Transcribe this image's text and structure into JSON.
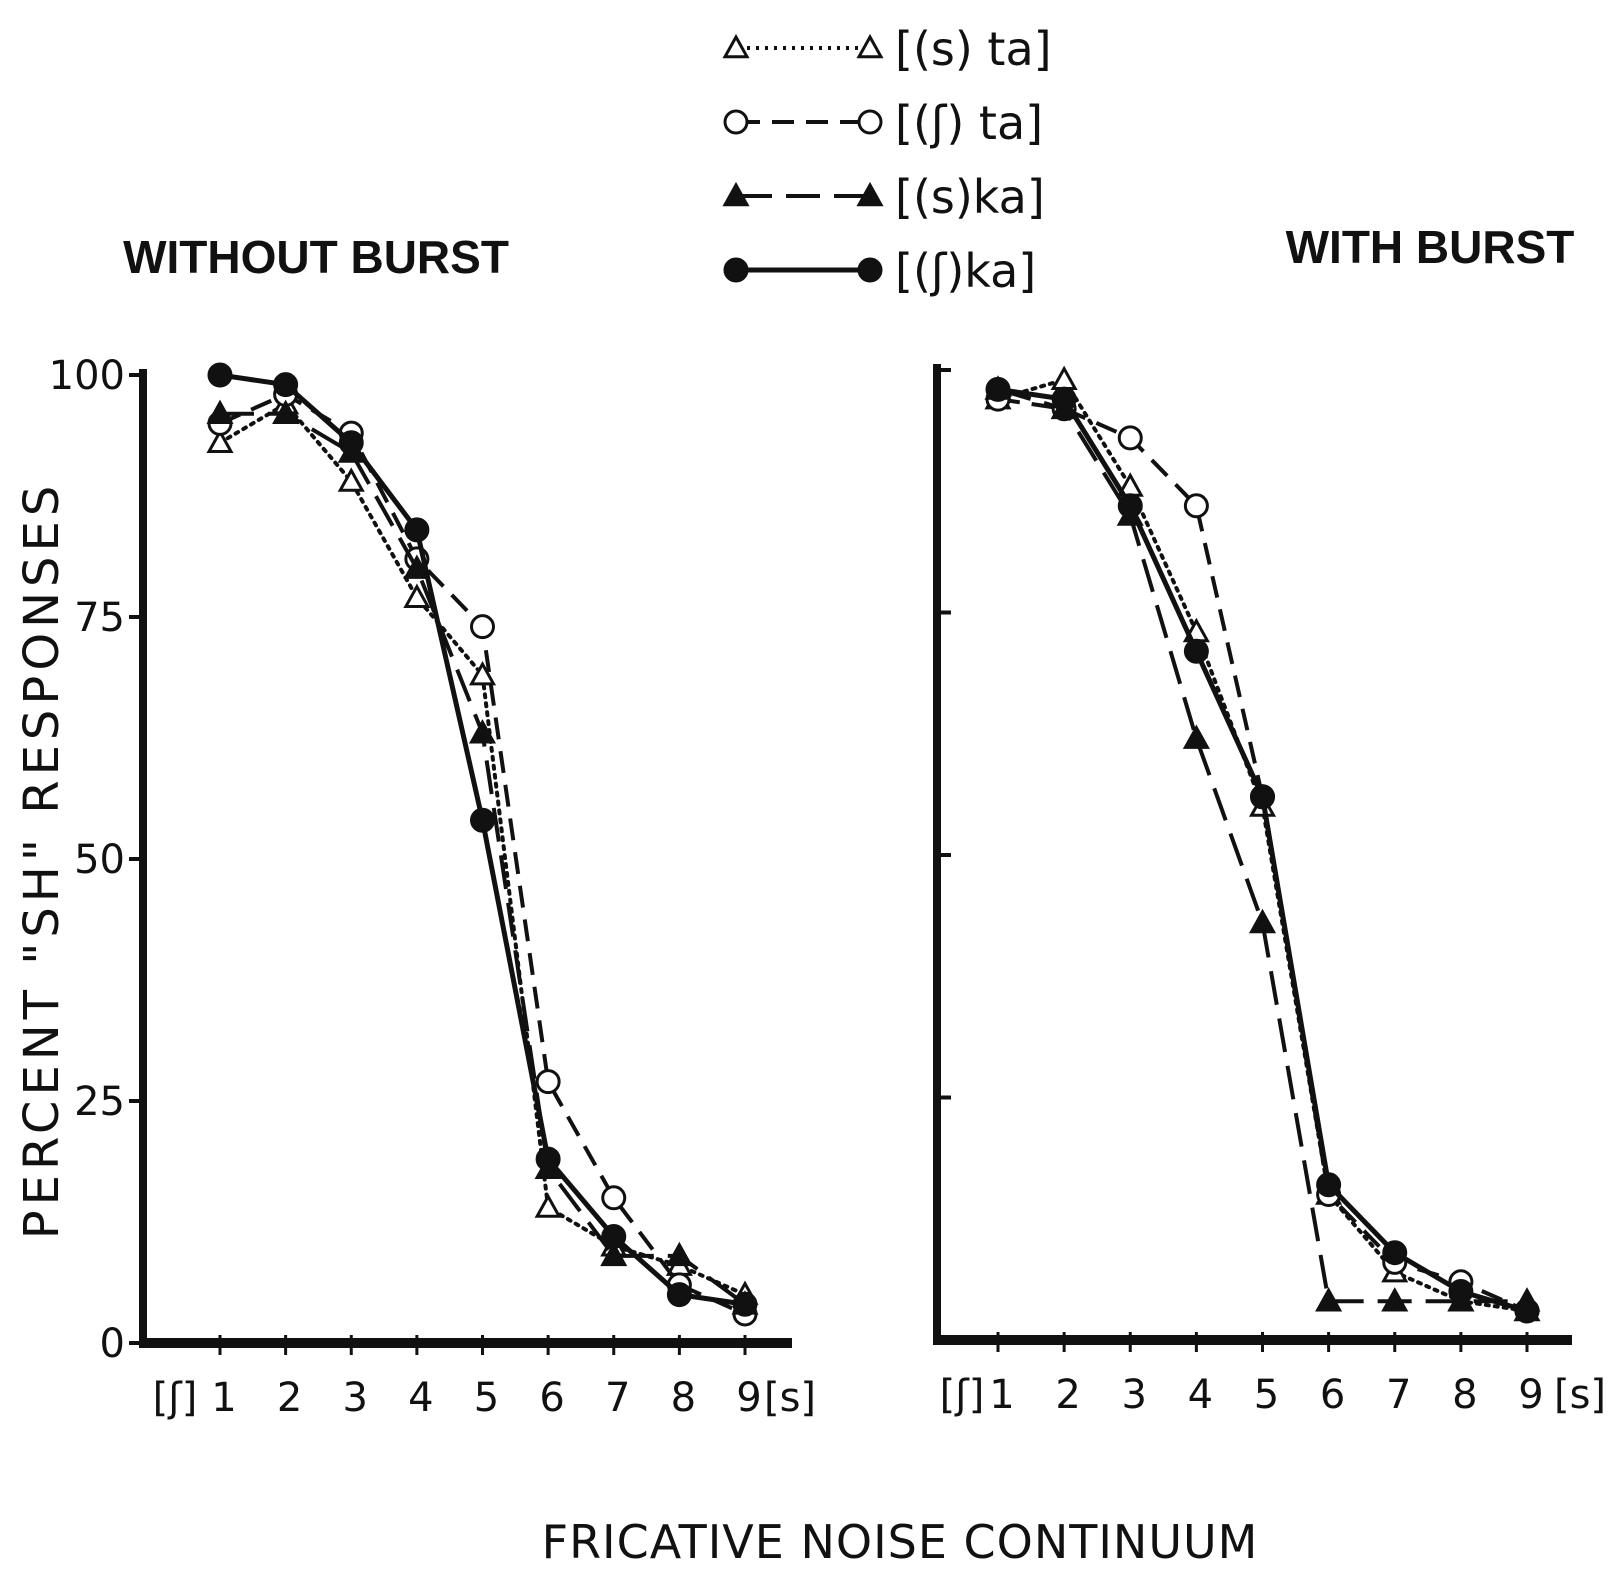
{
  "chart_data": {
    "type": "line",
    "ylabel": "PERCENT \"SH\" RESPONSES",
    "xlabel": "FRICATIVE NOISE CONTINUUM",
    "x_end_labels": [
      "[ʃ]",
      "[s]"
    ],
    "x": [
      1,
      2,
      3,
      4,
      5,
      6,
      7,
      8,
      9
    ],
    "xlim": [
      1,
      9
    ],
    "ylim": [
      0,
      100
    ],
    "yticks": [
      0,
      25,
      50,
      75,
      100
    ],
    "legend": [
      {
        "label": "[(s) ta]",
        "marker": "open-triangle",
        "line": "dotted"
      },
      {
        "label": "[(ʃ) ta]",
        "marker": "open-circle",
        "line": "dashed"
      },
      {
        "label": "[(s)ka]",
        "marker": "filled-triangle",
        "line": "long-dash"
      },
      {
        "label": "[(ʃ)ka]",
        "marker": "filled-circle",
        "line": "solid"
      }
    ],
    "panels": [
      {
        "title": "WITHOUT BURST",
        "show_ytick_labels": true,
        "series": [
          {
            "values": [
              93,
              97,
              89,
              77,
              69,
              14,
              10,
              8,
              5
            ]
          },
          {
            "values": [
              95,
              98,
              94,
              81,
              74,
              27,
              15,
              6,
              3
            ]
          },
          {
            "values": [
              96,
              96,
              92,
              80,
              63,
              18,
              9,
              9,
              4
            ]
          },
          {
            "values": [
              100,
              99,
              93,
              84,
              54,
              19,
              11,
              5,
              4
            ]
          }
        ]
      },
      {
        "title": "WITH BURST",
        "show_ytick_labels": false,
        "series": [
          {
            "values": [
              97,
              99,
              88,
              73,
              55,
              15,
              7,
              4,
              3
            ]
          },
          {
            "values": [
              97,
              96,
              93,
              86,
              56,
              15,
              8,
              6,
              3
            ]
          },
          {
            "values": [
              98,
              96,
              85,
              62,
              43,
              4,
              4,
              4,
              4
            ]
          },
          {
            "values": [
              98,
              97,
              86,
              71,
              56,
              16,
              9,
              5,
              3
            ]
          }
        ]
      }
    ]
  }
}
